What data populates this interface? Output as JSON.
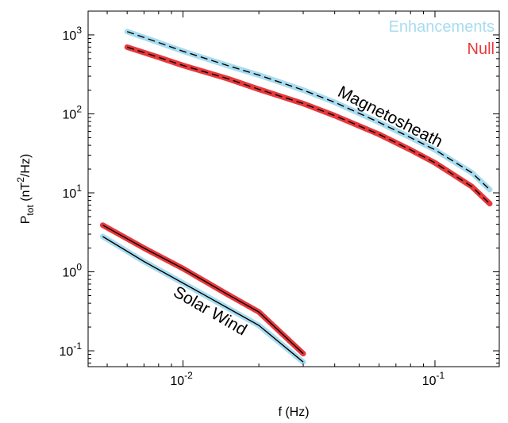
{
  "chart_data": {
    "type": "line",
    "title": "",
    "xlabel": "f (Hz)",
    "ylabel": "P_tot (nT^2/Hz)",
    "xscale": "log",
    "yscale": "log",
    "xlim": [
      0.0042,
      0.18
    ],
    "ylim": [
      0.063,
      2000
    ],
    "xticks": [
      {
        "value": 0.01,
        "base": "10",
        "exp": "-2"
      },
      {
        "value": 0.1,
        "base": "10",
        "exp": "-1"
      }
    ],
    "yticks": [
      {
        "value": 0.1,
        "base": "10",
        "exp": "-1"
      },
      {
        "value": 1,
        "base": "10",
        "exp": "0"
      },
      {
        "value": 10,
        "base": "10",
        "exp": "1"
      },
      {
        "value": 100,
        "base": "10",
        "exp": "2"
      },
      {
        "value": 1000,
        "base": "10",
        "exp": "3"
      }
    ],
    "grid": false,
    "legend": {
      "position": "top-right",
      "entries": [
        {
          "name": "Enhancements",
          "color": "#a8dcf0"
        },
        {
          "name": "Null",
          "color": "#e8383c"
        }
      ]
    },
    "annotations": [
      {
        "text": "Magnetosheath",
        "x": 0.065,
        "y": 80,
        "rotation": 27
      },
      {
        "text": "Solar Wind",
        "x": 0.0125,
        "y": 0.28,
        "rotation": 30
      }
    ],
    "series": [
      {
        "name": "Enhancements",
        "region": "Magnetosheath",
        "color": "#a8dcf0",
        "center_line": "dashed",
        "x": [
          0.006,
          0.008,
          0.01,
          0.015,
          0.02,
          0.03,
          0.04,
          0.06,
          0.08,
          0.1,
          0.14,
          0.165
        ],
        "y": [
          1100,
          800,
          620,
          410,
          310,
          200,
          140,
          78,
          50,
          35,
          18,
          11
        ]
      },
      {
        "name": "Null",
        "region": "Magnetosheath",
        "color": "#e8383c",
        "center_line": "dashed",
        "x": [
          0.006,
          0.008,
          0.01,
          0.015,
          0.02,
          0.03,
          0.04,
          0.06,
          0.08,
          0.1,
          0.14,
          0.165
        ],
        "y": [
          700,
          520,
          410,
          280,
          205,
          135,
          95,
          55,
          35,
          24,
          12,
          7.3
        ]
      },
      {
        "name": "Null",
        "region": "Solar Wind",
        "color": "#e8383c",
        "center_line": "solid",
        "x": [
          0.0048,
          0.007,
          0.01,
          0.015,
          0.02,
          0.03
        ],
        "y": [
          3.9,
          2.0,
          1.1,
          0.52,
          0.31,
          0.092
        ]
      },
      {
        "name": "Enhancements",
        "region": "Solar Wind",
        "color": "#a8dcf0",
        "center_line": "solid",
        "x": [
          0.0048,
          0.007,
          0.01,
          0.015,
          0.02,
          0.03
        ],
        "y": [
          2.8,
          1.35,
          0.72,
          0.35,
          0.21,
          0.072
        ]
      }
    ]
  }
}
